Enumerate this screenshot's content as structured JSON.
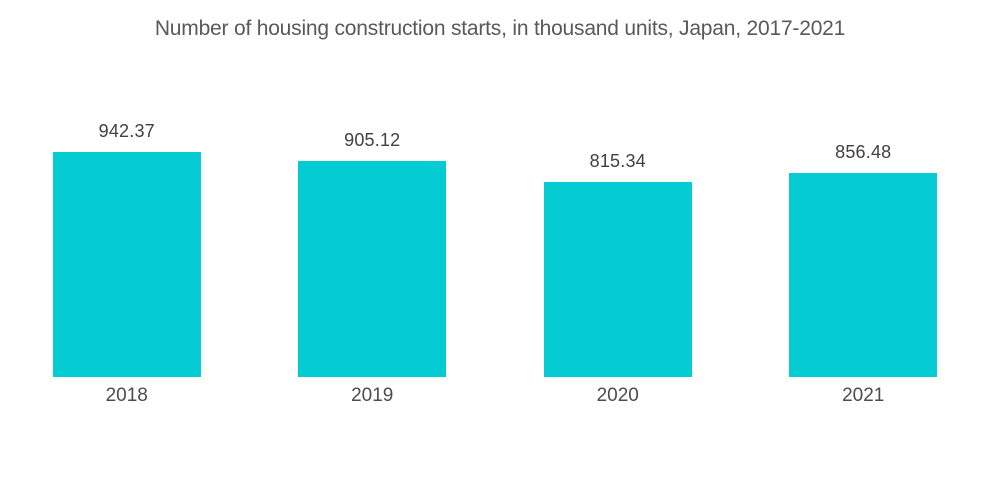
{
  "chart_data": {
    "type": "bar",
    "title": "Number of housing construction starts, in thousand units, Japan, 2017-2021",
    "categories": [
      "2018",
      "2019",
      "2020",
      "2021"
    ],
    "values": [
      942.37,
      905.12,
      815.34,
      856.48
    ],
    "value_labels": [
      "942.37",
      "905.12",
      "815.34",
      "856.48"
    ],
    "xlabel": "",
    "ylabel": "",
    "ylim": [
      0,
      1245
    ],
    "grid": false,
    "legend": "none",
    "bar_color": "#04CCD2",
    "title_color": "#58595B",
    "value_label_color": "#3F4142",
    "category_label_color": "#4A4C4D",
    "background_color": "#FFFFFF"
  }
}
